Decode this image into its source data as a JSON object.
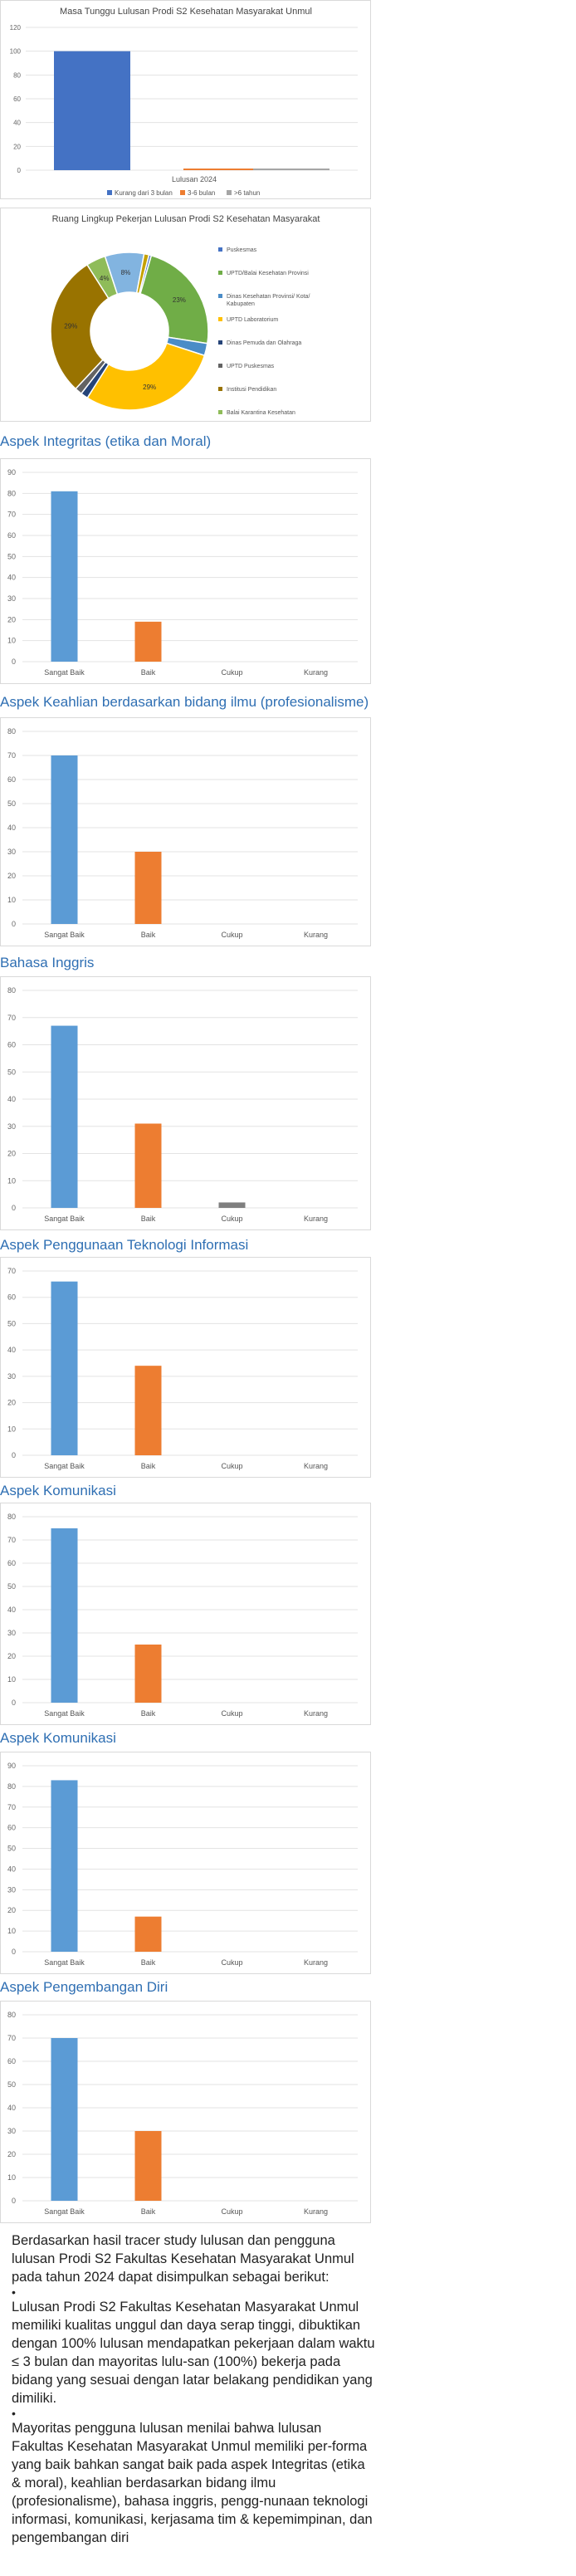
{
  "top_chart": {
    "chart_data": {
      "type": "bar",
      "title": "Masa Tunggu Lulusan Prodi S2 Kesehatan Masyarakat Unmul",
      "categories": [
        "Lulusan 2024"
      ],
      "y_ticks": [
        "0",
        "20",
        "40",
        "60",
        "80",
        "100",
        "120"
      ],
      "ylim": [
        0,
        120
      ],
      "series": [
        {
          "name": "Kurang dari 3 bulan",
          "values": [
            100
          ],
          "color": "#4472c4"
        },
        {
          "name": "3-6 bulan",
          "values": [
            0
          ],
          "color": "#ed7d31"
        },
        {
          "name": ">6 tahun",
          "values": [
            0
          ],
          "color": "#a5a5a5"
        }
      ]
    }
  },
  "pie_chart": {
    "chart_data": {
      "type": "pie",
      "title": "Ruang Lingkup Pekerjan Lulusan Prodi S2 Kesehatan Masyarakat",
      "slices": [
        {
          "label": "Puskesmas",
          "value": 0.5,
          "pct": "",
          "color": "#4472c4"
        },
        {
          "label": "UPTD/Balai Kesehatan Provinsi",
          "value": 23,
          "pct": "23%",
          "color": "#70ad47"
        },
        {
          "label": "Dinas Kesehatan Provinsi/ Kota/ Kabupaten",
          "value": 2.5,
          "pct": "",
          "color": "#4a8cc7"
        },
        {
          "label": "UPTD Laboratorium",
          "value": 29,
          "pct": "29%",
          "color": "#ffc000"
        },
        {
          "label": "Dinas Pemuda dan Olahraga",
          "value": 1.5,
          "pct": "",
          "color": "#264478"
        },
        {
          "label": "UPTD Puskesmas",
          "value": 1.5,
          "pct": "",
          "color": "#636363"
        },
        {
          "label": "Institusi Pendidikan",
          "value": 29,
          "pct": "29%",
          "color": "#997300"
        },
        {
          "label": "Balai Karantina Kesehatan",
          "value": 4,
          "pct": "4%",
          "color": "#8fbc59"
        },
        {
          "label": "",
          "value": 8,
          "pct": "8%",
          "color": "#82b4e0"
        },
        {
          "label": "",
          "value": 1,
          "pct": "",
          "color": "#c5a100"
        }
      ]
    }
  },
  "charts": [
    {
      "section_title": "Aspek Integritas (etika dan Moral)",
      "chart_data": {
        "type": "bar",
        "categories": [
          "Sangat Baik",
          "Baik",
          "Cukup",
          "Kurang"
        ],
        "values": [
          81,
          19,
          0,
          0
        ],
        "ylim": [
          0,
          90
        ],
        "y_ticks": [
          "0",
          "10",
          "20",
          "30",
          "40",
          "50",
          "60",
          "70",
          "80",
          "90"
        ]
      }
    },
    {
      "section_title": "Aspek Keahlian berdasarkan bidang ilmu (profesionalisme)",
      "chart_data": {
        "type": "bar",
        "categories": [
          "Sangat Baik",
          "Baik",
          "Cukup",
          "Kurang"
        ],
        "values": [
          70,
          30,
          0,
          0
        ],
        "ylim": [
          0,
          80
        ],
        "y_ticks": [
          "0",
          "10",
          "20",
          "30",
          "40",
          "50",
          "60",
          "70",
          "80"
        ]
      }
    },
    {
      "section_title": "Bahasa Inggris",
      "chart_data": {
        "type": "bar",
        "categories": [
          "Sangat Baik",
          "Baik",
          "Cukup",
          "Kurang"
        ],
        "values": [
          67,
          31,
          2,
          0
        ],
        "ylim": [
          0,
          80
        ],
        "y_ticks": [
          "0",
          "10",
          "20",
          "30",
          "40",
          "50",
          "60",
          "70",
          "80"
        ]
      }
    },
    {
      "section_title": "Aspek Penggunaan Teknologi Informasi",
      "chart_data": {
        "type": "bar",
        "categories": [
          "Sangat Baik",
          "Baik",
          "Cukup",
          "Kurang"
        ],
        "values": [
          66,
          34,
          0,
          0
        ],
        "ylim": [
          0,
          70
        ],
        "y_ticks": [
          "0",
          "10",
          "20",
          "30",
          "40",
          "50",
          "60",
          "70"
        ]
      }
    },
    {
      "section_title": "Aspek Komunikasi",
      "chart_data": {
        "type": "bar",
        "categories": [
          "Sangat Baik",
          "Baik",
          "Cukup",
          "Kurang"
        ],
        "values": [
          75,
          25,
          0,
          0
        ],
        "ylim": [
          0,
          80
        ],
        "y_ticks": [
          "0",
          "10",
          "20",
          "30",
          "40",
          "50",
          "60",
          "70",
          "80"
        ]
      }
    },
    {
      "section_title": "Aspek Komunikasi",
      "chart_data": {
        "type": "bar",
        "categories": [
          "Sangat Baik",
          "Baik",
          "Cukup",
          "Kurang"
        ],
        "values": [
          83,
          17,
          0,
          0
        ],
        "ylim": [
          0,
          90
        ],
        "y_ticks": [
          "0",
          "10",
          "20",
          "30",
          "40",
          "50",
          "60",
          "70",
          "80",
          "90"
        ]
      }
    },
    {
      "section_title": "Aspek Pengembangan Diri",
      "chart_data": {
        "type": "bar",
        "categories": [
          "Sangat Baik",
          "Baik",
          "Cukup",
          "Kurang"
        ],
        "values": [
          70,
          30,
          0,
          0
        ],
        "ylim": [
          0,
          80
        ],
        "y_ticks": [
          "0",
          "10",
          "20",
          "30",
          "40",
          "50",
          "60",
          "70",
          "80"
        ]
      }
    }
  ],
  "bar_colors": [
    "#5b9bd5",
    "#ed7d31",
    "#7f7f7f",
    "#5b9bd5"
  ],
  "summary": {
    "intro": "Berdasarkan hasil tracer study lulusan dan pengguna lulusan Prodi S2 Fakultas Kesehatan Masyarakat Unmul pada tahun 2024 dapat disimpulkan sebagai berikut:",
    "bullet_symbol": "•",
    "points": [
      "Lulusan Prodi S2 Fakultas Kesehatan Masyarakat Unmul memiliki kualitas unggul dan daya serap tinggi, dibuktikan dengan 100% lulusan mendapatkan pekerjaan dalam waktu ≤ 3 bulan dan mayoritas lulu-san (100%) bekerja pada bidang yang sesuai dengan latar belakang pendidikan yang dimiliki.",
      "Mayoritas pengguna lulusan menilai bahwa lulusan Fakultas Kesehatan Masyarakat Unmul memiliki per-forma yang baik bahkan sangat baik pada aspek Integritas (etika & moral), keahlian berdasarkan bidang ilmu (profesionalisme), bahasa inggris, pengg-nunaan teknologi informasi, komunikasi, kerjasama tim & kepemimpinan, dan pengembangan diri"
    ]
  }
}
